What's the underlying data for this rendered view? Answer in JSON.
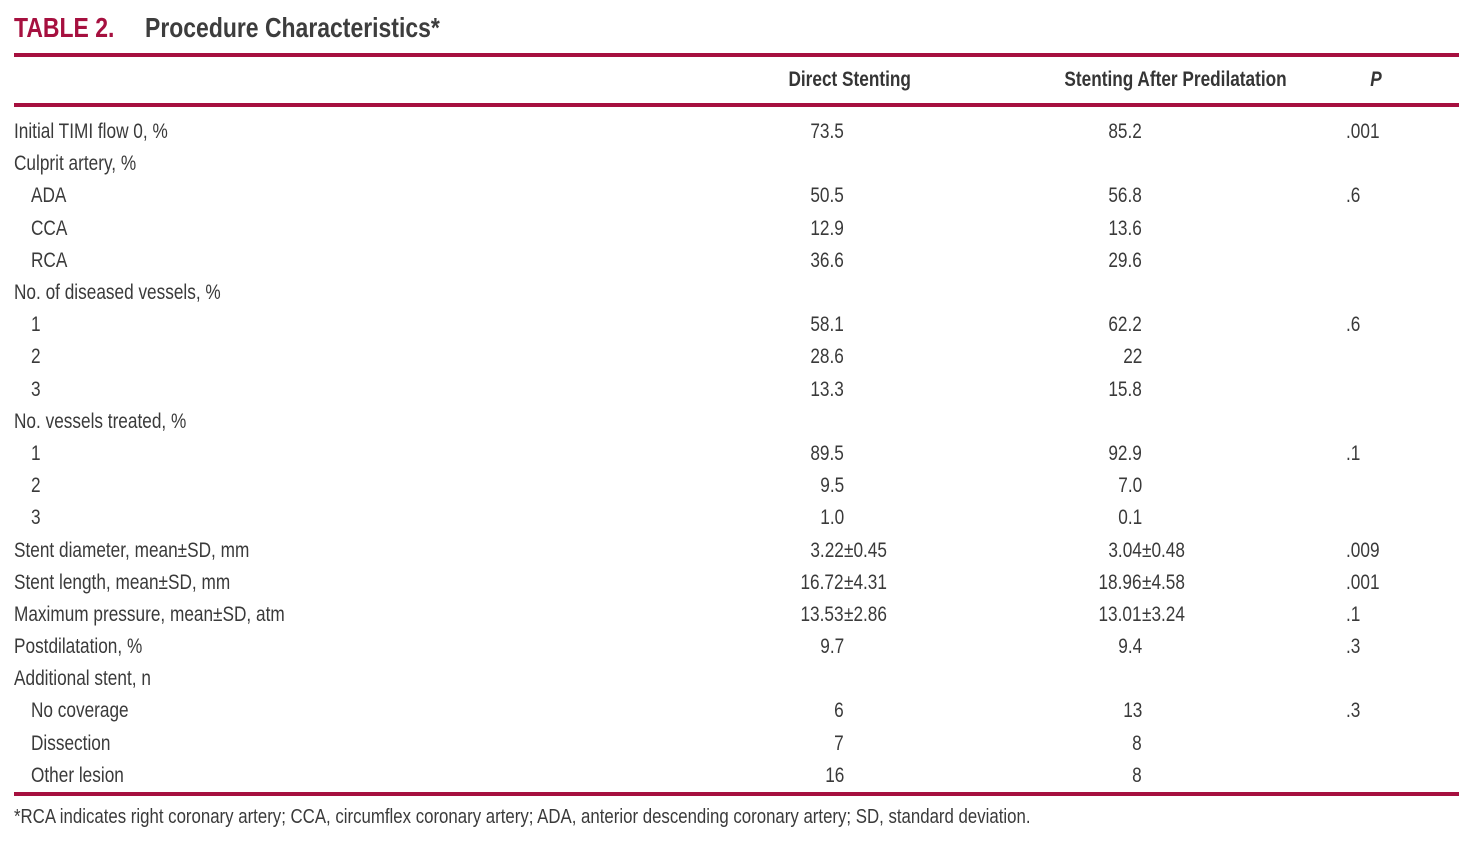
{
  "title": {
    "label": "TABLE 2.",
    "text": "Procedure Characteristics*"
  },
  "columns": [
    "",
    "Direct Stenting",
    "Stenting After Predilatation",
    "P"
  ],
  "rows": [
    {
      "label": "Initial TIMI flow 0, %",
      "indent": 0,
      "direct": "73.5",
      "predilatation": "85.2",
      "p": ".001"
    },
    {
      "label": "Culprit artery, %",
      "indent": 0,
      "direct": "",
      "predilatation": "",
      "p": ""
    },
    {
      "label": "ADA",
      "indent": 1,
      "direct": "50.5",
      "predilatation": "56.8",
      "p": ".6"
    },
    {
      "label": "CCA",
      "indent": 1,
      "direct": "12.9",
      "predilatation": "13.6",
      "p": ""
    },
    {
      "label": "RCA",
      "indent": 1,
      "direct": "36.6",
      "predilatation": "29.6",
      "p": ""
    },
    {
      "label": "No. of diseased vessels, %",
      "indent": 0,
      "direct": "",
      "predilatation": "",
      "p": ""
    },
    {
      "label": "1",
      "indent": 1,
      "direct": "58.1",
      "predilatation": "62.2",
      "p": ".6"
    },
    {
      "label": "2",
      "indent": 1,
      "direct": "28.6",
      "predilatation": "22",
      "p": ""
    },
    {
      "label": "3",
      "indent": 1,
      "direct": "13.3",
      "predilatation": "15.8",
      "p": ""
    },
    {
      "label": "No. vessels treated, %",
      "indent": 0,
      "direct": "",
      "predilatation": "",
      "p": ""
    },
    {
      "label": "1",
      "indent": 1,
      "direct": "89.5",
      "predilatation": "92.9",
      "p": ".1"
    },
    {
      "label": "2",
      "indent": 1,
      "direct": "9.5",
      "predilatation": "7.0",
      "p": ""
    },
    {
      "label": "3",
      "indent": 1,
      "direct": "1.0",
      "predilatation": "0.1",
      "p": ""
    },
    {
      "label": "Stent diameter, mean±SD, mm",
      "indent": 0,
      "direct": "3.22±0.45",
      "predilatation": "3.04±0.48",
      "p": ".009"
    },
    {
      "label": "Stent length, mean±SD, mm",
      "indent": 0,
      "direct": "16.72±4.31",
      "predilatation": "18.96±4.58",
      "p": ".001"
    },
    {
      "label": "Maximum pressure, mean±SD, atm",
      "indent": 0,
      "direct": "13.53±2.86",
      "predilatation": "13.01±3.24",
      "p": ".1"
    },
    {
      "label": "Postdilatation, %",
      "indent": 0,
      "direct": "9.7",
      "predilatation": "9.4",
      "p": ".3"
    },
    {
      "label": "Additional stent, n",
      "indent": 0,
      "direct": "",
      "predilatation": "",
      "p": ""
    },
    {
      "label": "No coverage",
      "indent": 1,
      "direct": "6",
      "predilatation": "13",
      "p": ".3"
    },
    {
      "label": "Dissection",
      "indent": 1,
      "direct": "7",
      "predilatation": "8",
      "p": ""
    },
    {
      "label": "Other lesion",
      "indent": 1,
      "direct": "16",
      "predilatation": "8",
      "p": ""
    }
  ],
  "footnote": "*RCA indicates right coronary artery; CCA, circumflex coronary artery; ADA, anterior descending coronary artery; SD, standard deviation.",
  "colors": {
    "accent": "#a6103f",
    "text": "#3a3a3a"
  }
}
